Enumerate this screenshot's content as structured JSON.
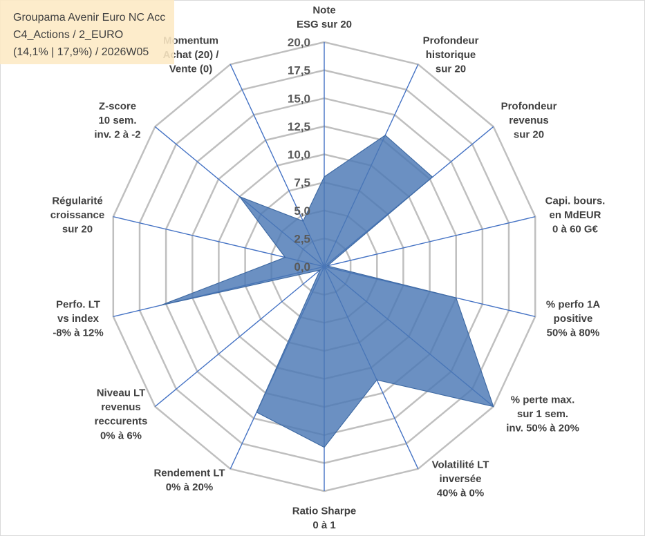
{
  "colors": {
    "series_fill": "#4A78B5",
    "series_stroke": "#3F6AA3",
    "axis_line": "#4472C4",
    "grid_line": "#BFBFBF",
    "axis_label_text": "#404040",
    "tick_label_text": "#595959",
    "info_box_bg": "#FDE9C4",
    "info_box_text": "#404040",
    "frame_border": "#D9D9D9"
  },
  "chart_data": {
    "type": "radar",
    "filled": true,
    "title": "Groupama Avenir Euro NC Acc",
    "subtitle_lines": [
      "C4_Actions / 2_EURO",
      "(14,1% | 17,9%) / 2026W05"
    ],
    "categories": [
      [
        "Note",
        "ESG sur 20"
      ],
      [
        "Profondeur",
        "historique",
        "sur 20"
      ],
      [
        "Profondeur",
        "revenus",
        "sur 20"
      ],
      [
        "Capi. bours.",
        "en MdEUR",
        "0 à 60 G€"
      ],
      [
        "% perfo 1A",
        "positive",
        "50% à 80%"
      ],
      [
        "% perte max.",
        "sur 1 sem.",
        "inv. 50% à 20%"
      ],
      [
        "Volatilité LT",
        "inversée",
        "40% à 0%"
      ],
      [
        "Ratio Sharpe",
        "0 à 1"
      ],
      [
        "Rendement LT",
        "0% à 20%"
      ],
      [
        "Niveau LT",
        "revenus",
        "reccurents",
        "0% à 6%"
      ],
      [
        "Perfo. LT",
        "vs index",
        "-8% à 12%"
      ],
      [
        "Régularité",
        "croissance",
        "sur 20"
      ],
      [
        "Z-score",
        "10 sem.",
        "inv. 2 à -2"
      ],
      [
        "Momentum",
        "Achat (20) /",
        "Vente (0)"
      ]
    ],
    "values": [
      8.0,
      13.0,
      12.8,
      0.3,
      12.5,
      20.0,
      11.2,
      16.1,
      14.4,
      0.5,
      15.5,
      3.7,
      10.0,
      4.5
    ],
    "r_tick_labels": [
      "0,0",
      "2,5",
      "5,0",
      "7,5",
      "10,0",
      "12,5",
      "15,0",
      "17,5",
      "20,0"
    ],
    "rlim": [
      0,
      20
    ],
    "grid": true,
    "legend_shown": false
  }
}
